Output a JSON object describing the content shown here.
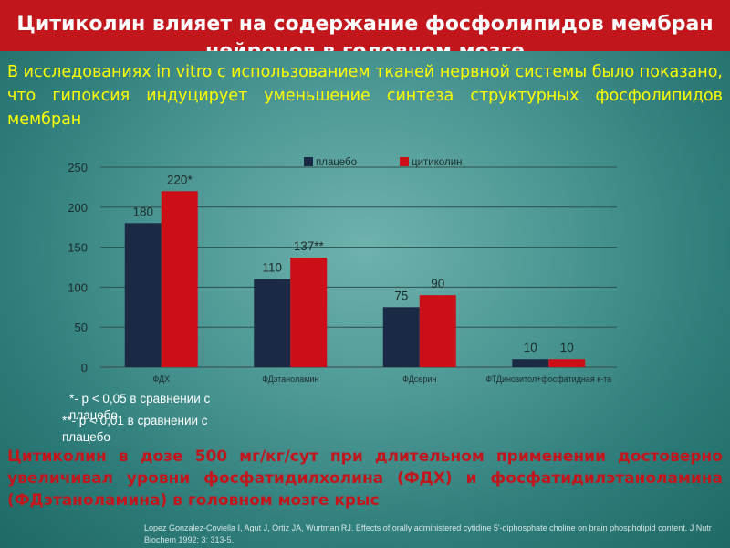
{
  "slide": {
    "title": "Цитиколин влияет на содержание фосфолипидов мембран нейронов в головном мозге",
    "intro": "В исследованиях in vitro с использованием тканей нервной системы было показано, что гипоксия индуцирует уменьшение синтеза структурных фосфолипидов мембран",
    "note_1": "*- p < 0,05 в сравнении с плацебо",
    "note_2": "**- p < 0,01 в сравнении с плацебо",
    "conclusion": "Цитиколин в дозе 500 мг/кг/сут при длительном применении достоверно увеличивал уровни фосфатидилхолина (ФДХ) и фосфатидилэтаноламина (ФДэтаноламина) в головном мозге крыс",
    "reference": "Lopez Gonzalez-Coviella I, Agut J, Ortiz JA, Wurtman RJ. Effects of orally administered cytidine 5'-diphosphate choline on brain phospholipid content. J Nutr Biochem 1992; 3: 313-5."
  },
  "colors": {
    "placebo": "#1a2a45",
    "citicoline": "#cc0e16",
    "title_bg": "#c0161c",
    "text_yellow": "#ffff00"
  },
  "chart_data": {
    "type": "bar",
    "categories": [
      "ФДХ",
      "ФДэтаноламин",
      "ФДсерин",
      "ФТДинозитол+фосфатидная к-та"
    ],
    "series": [
      {
        "name": "плацебо",
        "values": [
          180,
          110,
          75,
          10
        ],
        "labels": [
          "180",
          "110",
          "75",
          "10"
        ]
      },
      {
        "name": "цитиколин",
        "values": [
          220,
          137,
          90,
          10
        ],
        "labels": [
          "220*",
          "137**",
          "90",
          "10"
        ]
      }
    ],
    "ylim": [
      0,
      250
    ],
    "yticks": [
      "0",
      "50",
      "100",
      "150",
      "200",
      "250"
    ],
    "legend_position": "top-center",
    "grid": true
  }
}
